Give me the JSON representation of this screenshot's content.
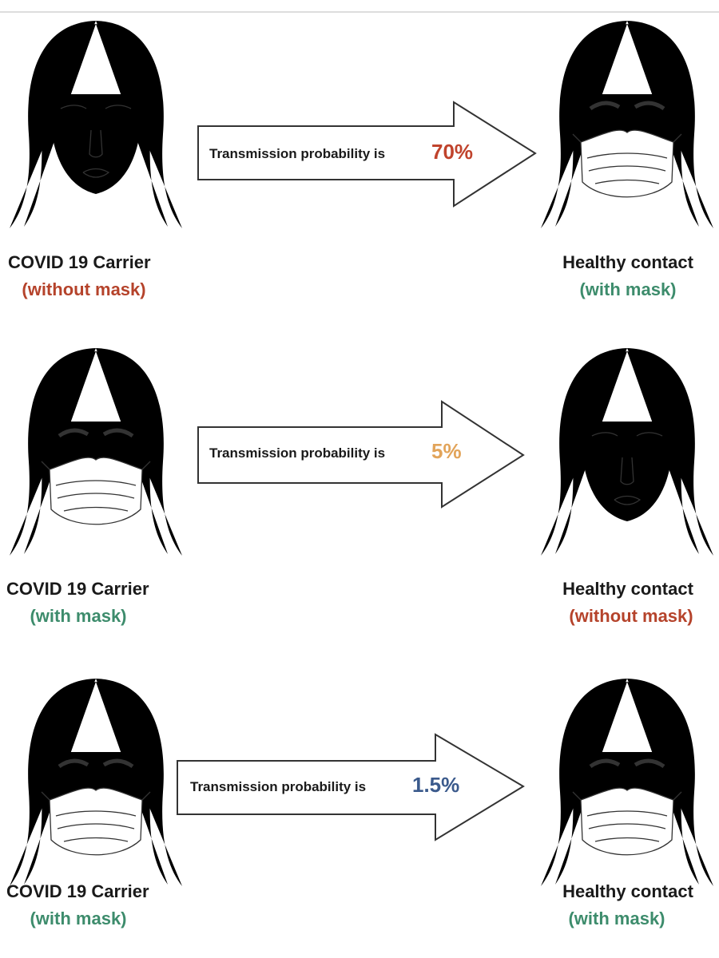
{
  "rows": [
    {
      "carrier": {
        "title": "COVID 19 Carrier",
        "status": "(without mask)"
      },
      "arrow": {
        "text": "Transmission probability is",
        "probability": "70%"
      },
      "contact": {
        "title": "Healthy contact",
        "status": "(with mask)"
      }
    },
    {
      "carrier": {
        "title": "COVID 19 Carrier",
        "status": "(with mask)"
      },
      "arrow": {
        "text": "Transmission probability is",
        "probability": "5%"
      },
      "contact": {
        "title": "Healthy contact",
        "status": "(without mask)"
      }
    },
    {
      "carrier": {
        "title": "COVID 19 Carrier",
        "status": "(with mask)"
      },
      "arrow": {
        "text": "Transmission probability is",
        "probability": "1.5%"
      },
      "contact": {
        "title": "Healthy contact",
        "status": "(with mask)"
      }
    }
  ]
}
